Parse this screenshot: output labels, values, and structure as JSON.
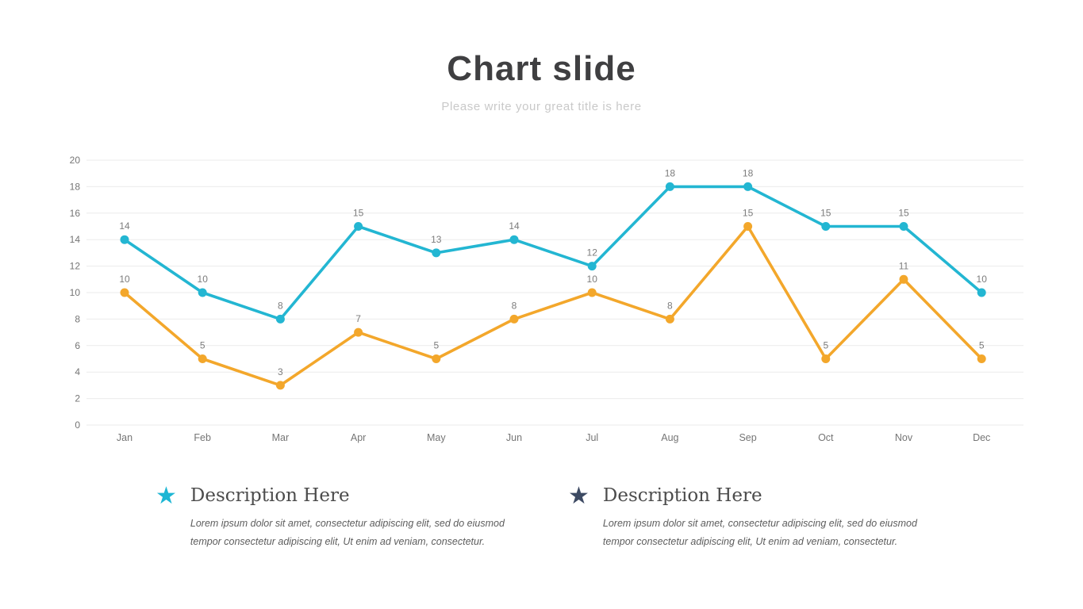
{
  "slide": {
    "title": "Chart slide",
    "subtitle": "Please write your great title is here"
  },
  "chart_data": {
    "type": "line",
    "title": "",
    "xlabel": "",
    "ylabel": "",
    "categories": [
      "Jan",
      "Feb",
      "Mar",
      "Apr",
      "May",
      "Jun",
      "Jul",
      "Aug",
      "Sep",
      "Oct",
      "Nov",
      "Dec"
    ],
    "series": [
      {
        "name": "series-teal",
        "color": "#23b6d2",
        "values": [
          14,
          10,
          8,
          15,
          13,
          14,
          12,
          18,
          18,
          15,
          15,
          10
        ]
      },
      {
        "name": "series-orange",
        "color": "#f3a72b",
        "values": [
          10,
          5,
          3,
          7,
          5,
          8,
          10,
          8,
          15,
          5,
          11,
          5
        ]
      }
    ],
    "ylim": [
      0,
      20
    ],
    "ytick_step": 2,
    "grid": true,
    "show_point_labels": true,
    "legend_position": "none",
    "colors": {
      "grid": "#ebebeb",
      "axis_text": "#757575",
      "point_label": "#7c7c7c"
    }
  },
  "descriptions": [
    {
      "icon": "star",
      "icon_color": "#1db6d4",
      "title": "Description Here",
      "body_line1": "Lorem ipsum dolor sit amet, consectetur adipiscing elit, sed do eiusmod",
      "body_line2": "tempor consectetur adipiscing elit, Ut enim ad veniam, consectetur."
    },
    {
      "icon": "star",
      "icon_color": "#3d4a63",
      "title": "Description Here",
      "body_line1": "Lorem ipsum dolor sit amet, consectetur adipiscing elit, sed do eiusmod",
      "body_line2": "tempor consectetur adipiscing elit, Ut enim ad veniam, consectetur."
    }
  ]
}
